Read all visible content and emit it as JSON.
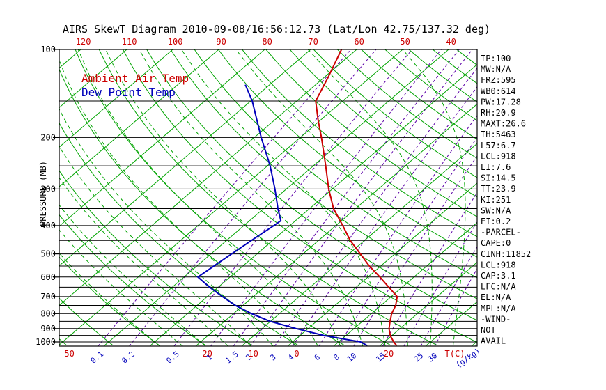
{
  "title": "AIRS SkewT Diagram 2010-09-08/16:56:12.73 (Lat/Lon 42.75/137.32 deg)",
  "legend": {
    "ambient": "Ambient Air Temp",
    "dewpoint": "Dew Point Temp"
  },
  "axes": {
    "y_label": "PRESSURE (MB)",
    "x_label_temp": "T(C)",
    "x_label_mixing": "(g/kg)",
    "pressure_ticks": [
      "100",
      "200",
      "300",
      "400",
      "500",
      "600",
      "700",
      "800",
      "900",
      "1000"
    ],
    "top_temp_ticks": [
      "-120",
      "-110",
      "-100",
      "-90",
      "-80",
      "-70",
      "-60",
      "-50",
      "-40"
    ],
    "bottom_temp_ticks": [
      "-50",
      "-20",
      "-10",
      "0",
      "20"
    ],
    "mixing_ratio_ticks": [
      "0.1",
      "0.2",
      "0.5",
      "1",
      "1.5",
      "2",
      "3",
      "4",
      "6",
      "8",
      "10",
      "15",
      "25",
      "30"
    ]
  },
  "side_panel": {
    "lines": [
      "TP:100",
      "MW:N/A",
      "FRZ:595",
      "WB0:614",
      "PW:17.28",
      "RH:20.9",
      "MAXT:26.6",
      "TH:5463",
      "L57:6.7",
      "LCL:918",
      "LI:7.6",
      "SI:14.5",
      "TT:23.9",
      "KI:251",
      "SW:N/A",
      "EI:0.2",
      "-PARCEL-",
      "CAPE:0",
      "CINH:11852",
      "LCL:918",
      "CAP:3.1",
      "LFC:N/A",
      "EL:N/A",
      "MPL:N/A",
      "-WIND-",
      "NOT",
      "AVAIL"
    ]
  },
  "colors": {
    "isotherm_green": "#00a400",
    "mixing_purple": "#5c00a8",
    "temp_red": "#cc0000",
    "dew_blue": "#0000bb",
    "axis_black": "#000000"
  },
  "chart_data": {
    "type": "line",
    "subtype": "skewt-log-p",
    "title": "AIRS SkewT Diagram 2010-09-08/16:56:12.73 (Lat/Lon 42.75/137.32 deg)",
    "x_axis": "Temperature (C), skewed isotherms",
    "y_axis": "Pressure (MB), logarithmic scale",
    "y_range": [
      100,
      1035
    ],
    "surface_temp_range_c": [
      -50,
      40
    ],
    "grid_on": true,
    "legend_position": "top-left-inside",
    "pressure_gridlines": [
      100,
      150,
      200,
      250,
      300,
      350,
      400,
      450,
      500,
      550,
      600,
      650,
      700,
      750,
      800,
      850,
      900,
      950,
      1000
    ],
    "isotherms_c": [
      -120,
      -110,
      -100,
      -90,
      -80,
      -70,
      -60,
      -50,
      -40,
      -30,
      -20,
      -10,
      0,
      10,
      20,
      30,
      40
    ],
    "dry_adiabats_theta_c": [
      -50,
      -40,
      -30,
      -20,
      -10,
      0,
      10,
      20,
      30,
      40,
      50,
      60,
      70,
      80,
      90,
      100,
      110,
      120,
      130,
      140,
      150,
      160,
      170,
      180,
      190
    ],
    "moist_adiabats_start_c": [
      -30,
      -25,
      -20,
      -15,
      -10,
      -5,
      0,
      5,
      10,
      15,
      20,
      25,
      30,
      35,
      40
    ],
    "mixing_ratio_lines_gkg": [
      0.1,
      0.2,
      0.5,
      1,
      1.5,
      2,
      3,
      4,
      6,
      8,
      10,
      15,
      20,
      25,
      30
    ],
    "series": [
      {
        "name": "Ambient Air Temp",
        "color": "#cc0000",
        "points_p_t": [
          [
            100,
            -63.3
          ],
          [
            125,
            -59.1
          ],
          [
            150,
            -55.9
          ],
          [
            175,
            -50.4
          ],
          [
            200,
            -45.4
          ],
          [
            250,
            -37.3
          ],
          [
            300,
            -30.8
          ],
          [
            350,
            -24.8
          ],
          [
            400,
            -18.5
          ],
          [
            450,
            -13.1
          ],
          [
            500,
            -7.5
          ],
          [
            550,
            -2.5
          ],
          [
            600,
            2.6
          ],
          [
            650,
            7.1
          ],
          [
            700,
            11.3
          ],
          [
            750,
            13.2
          ],
          [
            800,
            14.4
          ],
          [
            850,
            16.0
          ],
          [
            900,
            17.6
          ],
          [
            950,
            19.6
          ],
          [
            1000,
            22.0
          ],
          [
            1030,
            23.6
          ]
        ]
      },
      {
        "name": "Dew Point Temp",
        "color": "#0000bb",
        "points_p_t": [
          [
            132,
            -75.3
          ],
          [
            150,
            -69.7
          ],
          [
            175,
            -63.7
          ],
          [
            200,
            -58.5
          ],
          [
            250,
            -49.4
          ],
          [
            300,
            -42.5
          ],
          [
            350,
            -36.9
          ],
          [
            385,
            -33.2
          ],
          [
            400,
            -33.5
          ],
          [
            450,
            -34.6
          ],
          [
            500,
            -35.5
          ],
          [
            550,
            -36.3
          ],
          [
            600,
            -37.0
          ],
          [
            650,
            -31.9
          ],
          [
            700,
            -26.7
          ],
          [
            750,
            -21.7
          ],
          [
            800,
            -16.1
          ],
          [
            850,
            -10.1
          ],
          [
            900,
            -2.6
          ],
          [
            950,
            5.1
          ],
          [
            1000,
            14.8
          ],
          [
            1030,
            17.2
          ]
        ]
      }
    ]
  }
}
